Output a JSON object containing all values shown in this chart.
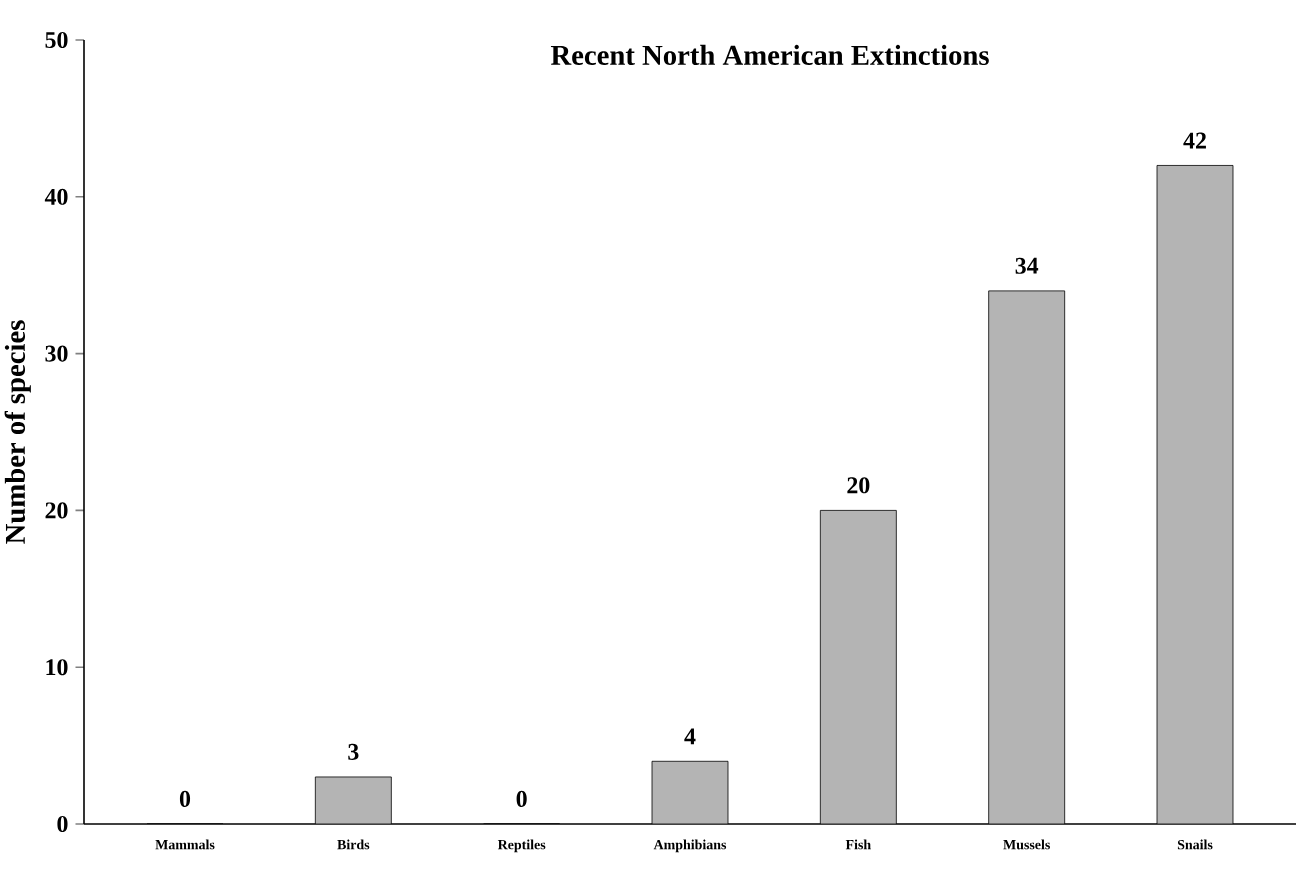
{
  "chart_data": {
    "type": "bar",
    "title": "Recent North American Extinctions",
    "ylabel": "Number of species",
    "categories": [
      "Mammals",
      "Birds",
      "Reptiles",
      "Amphibians",
      "Fish",
      "Mussels",
      "Snails"
    ],
    "values": [
      0,
      3,
      0,
      4,
      20,
      34,
      42
    ],
    "color": "#b4b4b4",
    "ylim": [
      0,
      50
    ],
    "yticks": [
      0,
      10,
      20,
      30,
      40,
      50
    ],
    "data_labels": true
  }
}
